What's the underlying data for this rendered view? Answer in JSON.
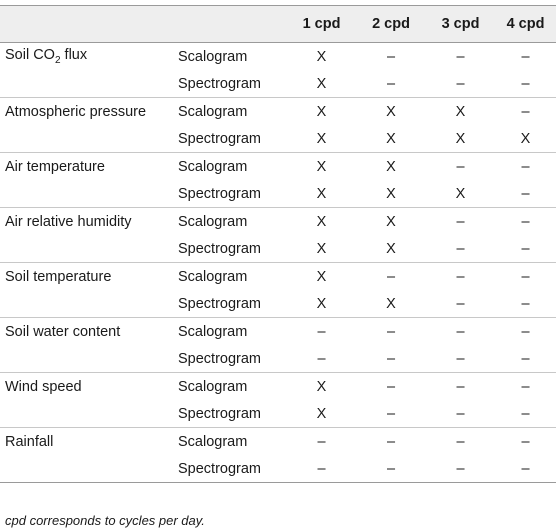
{
  "table": {
    "headers": [
      "",
      "",
      "1 cpd",
      "2 cpd",
      "3 cpd",
      "4 cpd"
    ],
    "variables": [
      {
        "name": "Soil CO",
        "name_sub": "2",
        "name_suffix": " flux",
        "rows": [
          {
            "method": "Scalogram",
            "marks": [
              "X",
              "–",
              "–",
              "–"
            ]
          },
          {
            "method": "Spectrogram",
            "marks": [
              "X",
              "–",
              "–",
              "–"
            ]
          }
        ]
      },
      {
        "name": "Atmospheric pressure",
        "rows": [
          {
            "method": "Scalogram",
            "marks": [
              "X",
              "X",
              "X",
              "–"
            ]
          },
          {
            "method": "Spectrogram",
            "marks": [
              "X",
              "X",
              "X",
              "X"
            ]
          }
        ]
      },
      {
        "name": "Air temperature",
        "rows": [
          {
            "method": "Scalogram",
            "marks": [
              "X",
              "X",
              "–",
              "–"
            ]
          },
          {
            "method": "Spectrogram",
            "marks": [
              "X",
              "X",
              "X",
              "–"
            ]
          }
        ]
      },
      {
        "name": "Air relative humidity",
        "rows": [
          {
            "method": "Scalogram",
            "marks": [
              "X",
              "X",
              "–",
              "–"
            ]
          },
          {
            "method": "Spectrogram",
            "marks": [
              "X",
              "X",
              "–",
              "–"
            ]
          }
        ]
      },
      {
        "name": "Soil temperature",
        "rows": [
          {
            "method": "Scalogram",
            "marks": [
              "X",
              "–",
              "–",
              "–"
            ]
          },
          {
            "method": "Spectrogram",
            "marks": [
              "X",
              "X",
              "–",
              "–"
            ]
          }
        ]
      },
      {
        "name": "Soil water content",
        "rows": [
          {
            "method": "Scalogram",
            "marks": [
              "–",
              "–",
              "–",
              "–"
            ]
          },
          {
            "method": "Spectrogram",
            "marks": [
              "–",
              "–",
              "–",
              "–"
            ]
          }
        ]
      },
      {
        "name": "Wind speed",
        "rows": [
          {
            "method": "Scalogram",
            "marks": [
              "X",
              "–",
              "–",
              "–"
            ]
          },
          {
            "method": "Spectrogram",
            "marks": [
              "X",
              "–",
              "–",
              "–"
            ]
          }
        ]
      },
      {
        "name": "Rainfall",
        "rows": [
          {
            "method": "Scalogram",
            "marks": [
              "–",
              "–",
              "–",
              "–"
            ]
          },
          {
            "method": "Spectrogram",
            "marks": [
              "–",
              "–",
              "–",
              "–"
            ]
          }
        ]
      }
    ]
  },
  "footnote": "cpd corresponds to cycles per day."
}
